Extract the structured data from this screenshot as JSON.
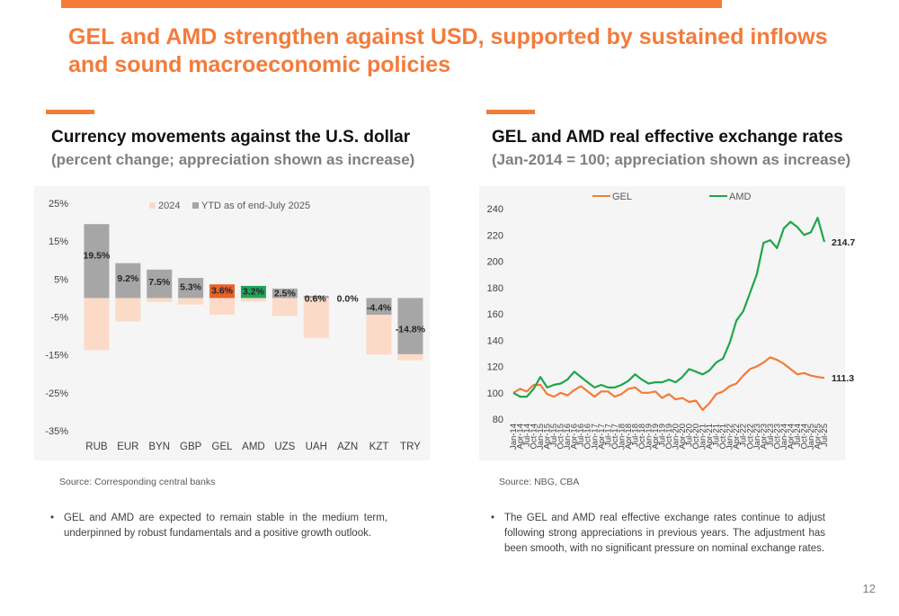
{
  "page": {
    "title": "GEL and AMD strengthen against USD, supported by sustained inflows and sound macroeconomic policies",
    "page_number": "12"
  },
  "colors": {
    "accent": "#F47B3A",
    "bar_2024": "#FCDAC8",
    "bar_ytd": "#A6A6A6",
    "bar_gel": "#E8622A",
    "bar_amd": "#23A35A",
    "line_gel": "#F47B3A",
    "line_amd": "#1FA64A"
  },
  "left": {
    "title": "Currency movements against the U.S. dollar",
    "subtitle": "(percent change; appreciation shown as increase)",
    "source": "Source: Corresponding central banks",
    "bullet": "GEL and AMD are expected to remain stable in the medium term, underpinned by robust fundamentals and a positive growth outlook."
  },
  "right": {
    "title": "GEL and AMD real effective exchange rates",
    "subtitle": "(Jan-2014 = 100; appreciation shown as increase)",
    "source": "Source: NBG, CBA",
    "bullet": "The GEL and AMD real effective exchange rates continue to adjust following strong appreciations in previous years. The adjustment has been smooth, with no significant pressure on nominal exchange rates."
  },
  "chart_data": [
    {
      "type": "bar",
      "categories": [
        "RUB",
        "EUR",
        "BYN",
        "GBP",
        "GEL",
        "AMD",
        "UZS",
        "UAH",
        "AZN",
        "KZT",
        "TRY"
      ],
      "series": [
        {
          "name": "2024",
          "values": [
            -13.7,
            -6.2,
            -1.0,
            -1.7,
            -4.4,
            -0.9,
            -4.7,
            -10.5,
            0.0,
            -14.9,
            -16.4
          ]
        },
        {
          "name": "YTD as of end-July 2025",
          "values": [
            19.5,
            9.2,
            7.5,
            5.3,
            3.6,
            3.2,
            2.5,
            0.6,
            0.0,
            -4.4,
            -14.8
          ]
        }
      ],
      "labels": [
        "19.5%",
        "9.2%",
        "7.5%",
        "5.3%",
        "3.6%",
        "3.2%",
        "2.5%",
        "0.6%",
        "0.0%",
        "-4.4%",
        "-14.8%"
      ],
      "y_ticks": [
        "-35%",
        "-25%",
        "-15%",
        "-5%",
        "5%",
        "15%",
        "25%"
      ],
      "y_tick_values": [
        -35,
        -25,
        -15,
        -5,
        5,
        15,
        25
      ],
      "ylim": [
        -35,
        25
      ],
      "legend_position": "top-center"
    },
    {
      "type": "line",
      "x": [
        "Jan-14",
        "Apr-14",
        "Jul-14",
        "Oct-14",
        "Jan-15",
        "Apr-15",
        "Jul-15",
        "Oct-15",
        "Jan-16",
        "Apr-16",
        "Jul-16",
        "Oct-16",
        "Jan-17",
        "Apr-17",
        "Jul-17",
        "Oct-17",
        "Jan-18",
        "Apr-18",
        "Jul-18",
        "Oct-18",
        "Jan-19",
        "Apr-19",
        "Jul-19",
        "Oct-19",
        "Jan-20",
        "Apr-20",
        "Jul-20",
        "Oct-20",
        "Jan-21",
        "Apr-21",
        "Jul-21",
        "Oct-21",
        "Jan-22",
        "Apr-22",
        "Jul-22",
        "Oct-22",
        "Jan-23",
        "Apr-23",
        "Jul-23",
        "Oct-23",
        "Jan-24",
        "Apr-24",
        "Jul-24",
        "Oct-24",
        "Jan-25",
        "Apr-25",
        "Jul-25"
      ],
      "series": [
        {
          "name": "GEL",
          "values": [
            100,
            103,
            101,
            106,
            106,
            99,
            97,
            100,
            98,
            102,
            105,
            101,
            97,
            101,
            101,
            97,
            99,
            103,
            104,
            100,
            100,
            101,
            96,
            99,
            95,
            96,
            93,
            94,
            87,
            92,
            99,
            101,
            105,
            107,
            113,
            118,
            120,
            123,
            127,
            125,
            122,
            118,
            114,
            115,
            113,
            112,
            111.3
          ]
        },
        {
          "name": "AMD",
          "values": [
            100,
            97,
            97,
            103,
            112,
            104,
            106,
            107,
            110,
            116,
            112,
            108,
            104,
            106,
            104,
            104,
            106,
            109,
            114,
            110,
            107,
            108,
            108,
            110,
            108,
            112,
            118,
            116,
            114,
            117,
            123,
            126,
            138,
            155,
            162,
            176,
            190,
            214,
            216,
            210,
            225,
            230,
            226,
            220,
            222,
            233,
            214.7
          ]
        }
      ],
      "end_labels": [
        "111.3",
        "214.7"
      ],
      "y_ticks": [
        80,
        100,
        120,
        140,
        160,
        180,
        200,
        220,
        240
      ],
      "ylim": [
        80,
        240
      ],
      "legend_position": "top-center"
    }
  ]
}
